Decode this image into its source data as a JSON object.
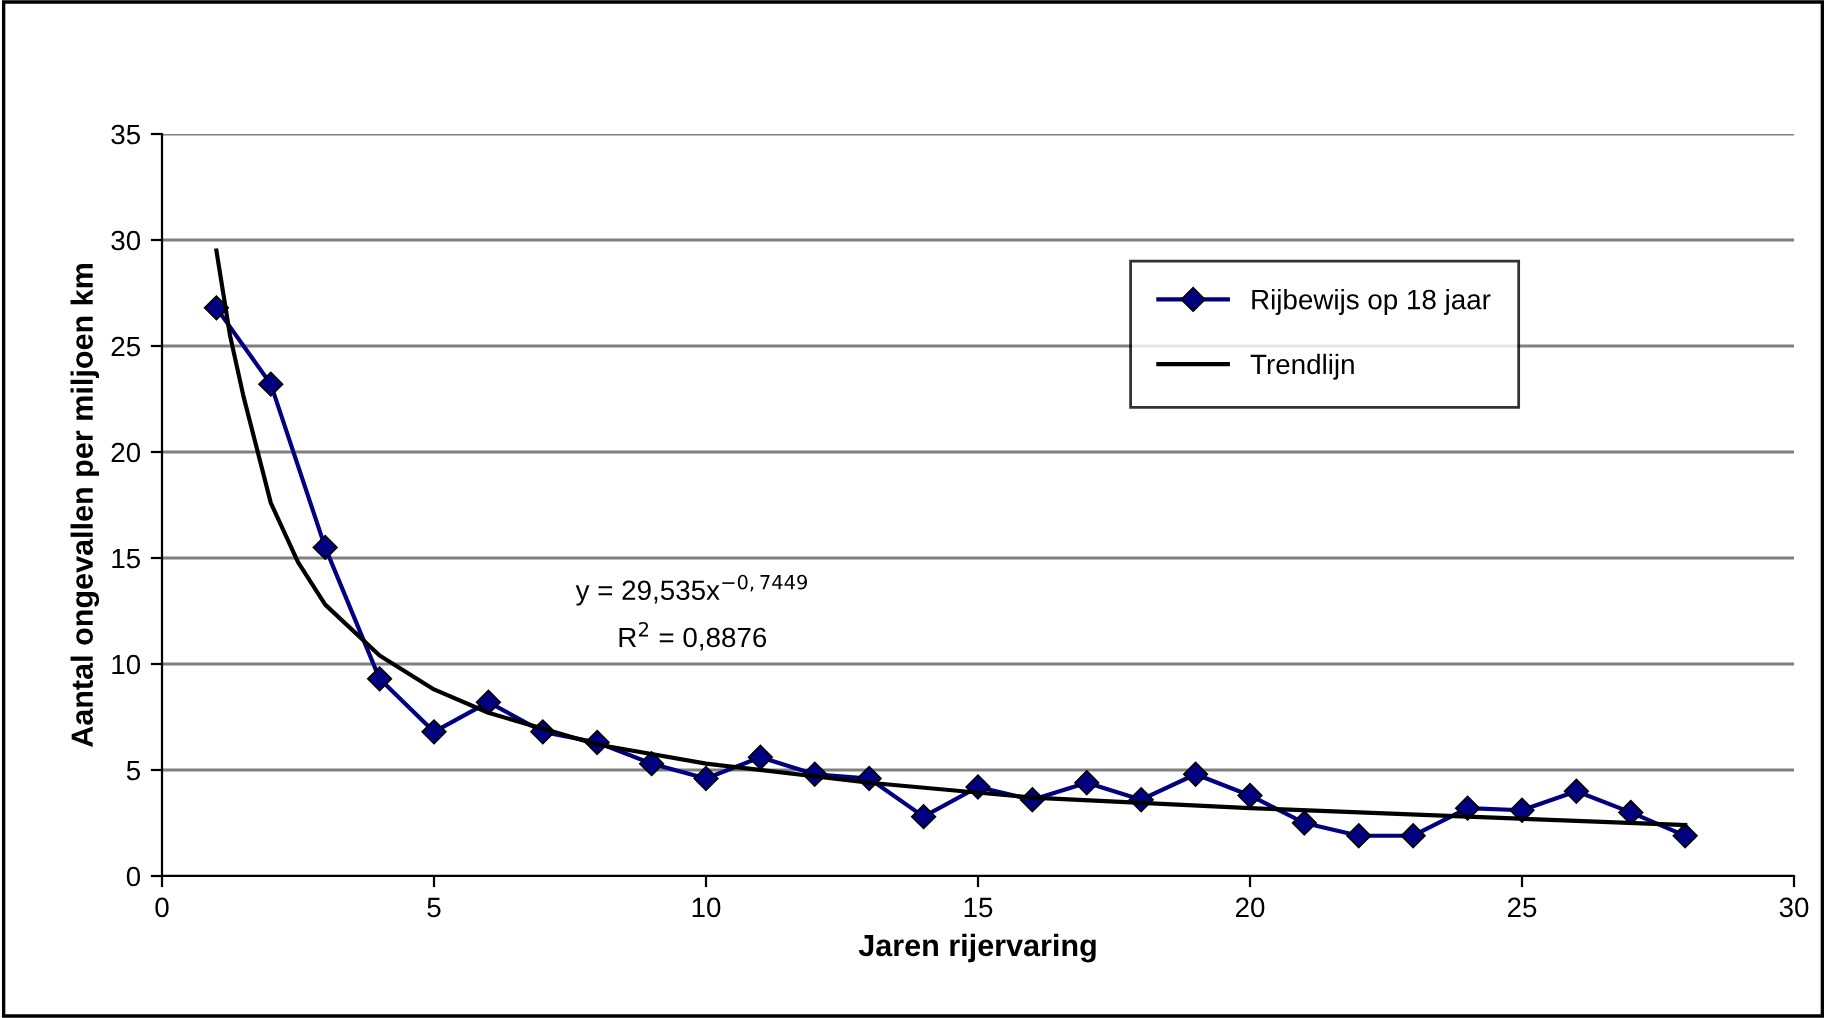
{
  "chart_data": {
    "type": "line",
    "xlabel": "Jaren rijervaring",
    "ylabel": "Aantal ongevallen per miljoen km",
    "series": [
      {
        "name": "Rijbewijs op 18 jaar",
        "color": "#000080",
        "marker": "diamond",
        "x": [
          1,
          2,
          3,
          4,
          5,
          6,
          7,
          8,
          9,
          10,
          11,
          12,
          13,
          14,
          15,
          16,
          17,
          18,
          19,
          20,
          21,
          22,
          23,
          24,
          25,
          26,
          27,
          28
        ],
        "values": [
          26.8,
          23.2,
          15.5,
          9.3,
          6.8,
          8.2,
          6.8,
          6.3,
          5.3,
          4.6,
          5.6,
          4.8,
          4.6,
          2.8,
          4.2,
          3.6,
          4.4,
          3.6,
          4.8,
          3.8,
          2.5,
          1.9,
          1.9,
          3.2,
          3.1,
          4.0,
          3.0,
          1.9
        ]
      },
      {
        "name": "Trendlijn",
        "color": "#000000",
        "marker": "none",
        "x": [
          1,
          1.25,
          1.5,
          2,
          2.5,
          3,
          4,
          5,
          6,
          8,
          10,
          13,
          16,
          20,
          24,
          28
        ],
        "values": [
          29.5,
          25.5,
          22.6,
          17.6,
          14.8,
          12.8,
          10.4,
          8.8,
          7.7,
          6.2,
          5.3,
          4.4,
          3.7,
          3.2,
          2.8,
          2.4
        ]
      }
    ],
    "annotations": [
      "y = 29,535x$^{−0,7449}$",
      "R$^{2}$ = 0,8876"
    ],
    "xlim": [
      0,
      30
    ],
    "xticks": [
      0,
      5,
      10,
      15,
      20,
      25,
      30
    ],
    "ylim": [
      0,
      35
    ],
    "yticks": [
      0,
      5,
      10,
      15,
      20,
      25,
      30,
      35
    ],
    "grid": "y",
    "legend": "right",
    "line_style": "solid"
  }
}
